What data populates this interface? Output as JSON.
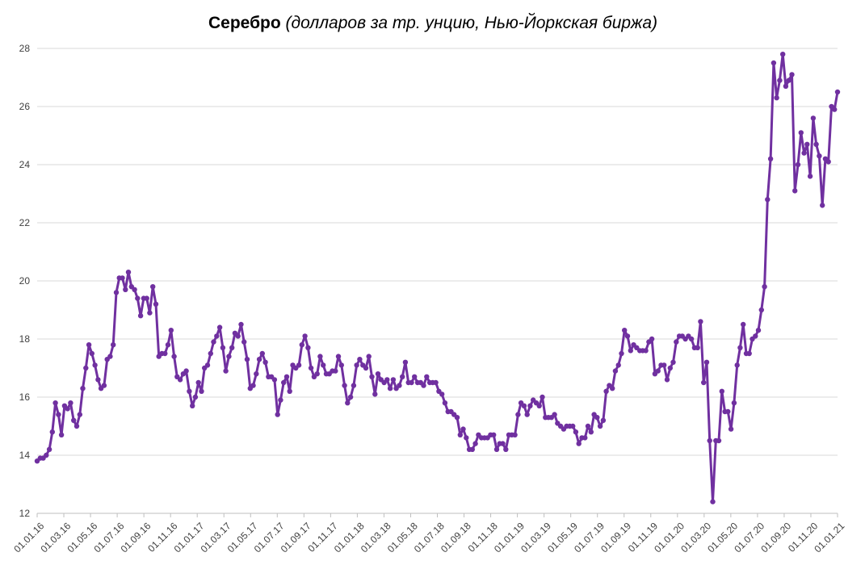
{
  "chart_data": {
    "type": "line",
    "title": "Серебро",
    "subtitle": "(долларов за тр. унцию, Нью-Йоркская биржа)",
    "xlabel": "",
    "ylabel": "",
    "ylim": [
      12,
      28
    ],
    "yticks": [
      12,
      14,
      16,
      18,
      20,
      22,
      24,
      26,
      28
    ],
    "grid": true,
    "legend": "none",
    "colors": {
      "line": "#7030A0",
      "grid": "#d9d9d9",
      "axis": "#bfbfbf",
      "text": "#404040"
    },
    "x_tick_labels": [
      "01.01.16",
      "01.03.16",
      "01.05.16",
      "01.07.16",
      "01.09.16",
      "01.11.16",
      "01.01.17",
      "01.03.17",
      "01.05.17",
      "01.07.17",
      "01.09.17",
      "01.11.17",
      "01.01.18",
      "01.03.18",
      "01.05.18",
      "01.07.18",
      "01.09.18",
      "01.11.18",
      "01.01.19",
      "01.03.19",
      "01.05.19",
      "01.07.19",
      "01.09.19",
      "01.11.19",
      "01.01.20",
      "01.03.20",
      "01.05.20",
      "01.07.20",
      "01.09.20",
      "01.11.20",
      "01.01.21"
    ],
    "series": [
      {
        "values": [
          13.8,
          13.9,
          13.9,
          14.0,
          14.2,
          14.8,
          15.8,
          15.4,
          14.7,
          15.7,
          15.6,
          15.8,
          15.2,
          15.0,
          15.4,
          16.3,
          17.0,
          17.8,
          17.5,
          17.1,
          16.6,
          16.3,
          16.4,
          17.3,
          17.4,
          17.8,
          19.6,
          20.1,
          20.1,
          19.7,
          20.3,
          19.8,
          19.7,
          19.4,
          18.8,
          19.4,
          19.4,
          18.9,
          19.8,
          19.2,
          17.4,
          17.5,
          17.5,
          17.8,
          18.3,
          17.4,
          16.7,
          16.6,
          16.8,
          16.9,
          16.2,
          15.7,
          16.0,
          16.5,
          16.2,
          17.0,
          17.1,
          17.5,
          17.9,
          18.1,
          18.4,
          17.7,
          16.9,
          17.4,
          17.7,
          18.2,
          18.1,
          18.5,
          17.9,
          17.3,
          16.3,
          16.4,
          16.8,
          17.3,
          17.5,
          17.2,
          16.7,
          16.7,
          16.6,
          15.4,
          15.9,
          16.5,
          16.7,
          16.2,
          17.1,
          17.0,
          17.1,
          17.8,
          18.1,
          17.7,
          17.0,
          16.7,
          16.8,
          17.4,
          17.1,
          16.8,
          16.8,
          16.9,
          16.9,
          17.4,
          17.1,
          16.4,
          15.8,
          16.0,
          16.4,
          17.1,
          17.3,
          17.1,
          17.0,
          17.4,
          16.7,
          16.1,
          16.8,
          16.6,
          16.5,
          16.6,
          16.3,
          16.6,
          16.3,
          16.4,
          16.7,
          17.2,
          16.5,
          16.5,
          16.7,
          16.5,
          16.5,
          16.4,
          16.7,
          16.5,
          16.5,
          16.5,
          16.2,
          16.1,
          15.8,
          15.5,
          15.5,
          15.4,
          15.3,
          14.7,
          14.9,
          14.6,
          14.2,
          14.2,
          14.4,
          14.7,
          14.6,
          14.6,
          14.6,
          14.7,
          14.7,
          14.2,
          14.4,
          14.4,
          14.2,
          14.7,
          14.7,
          14.7,
          15.4,
          15.8,
          15.7,
          15.4,
          15.7,
          15.9,
          15.8,
          15.7,
          16.0,
          15.3,
          15.3,
          15.3,
          15.4,
          15.1,
          15.0,
          14.9,
          15.0,
          15.0,
          15.0,
          14.8,
          14.4,
          14.6,
          14.6,
          15.0,
          14.8,
          15.4,
          15.3,
          15.0,
          15.2,
          16.2,
          16.4,
          16.3,
          16.9,
          17.1,
          17.5,
          18.3,
          18.1,
          17.6,
          17.8,
          17.7,
          17.6,
          17.6,
          17.6,
          17.9,
          18.0,
          16.8,
          16.9,
          17.1,
          17.1,
          16.6,
          17.0,
          17.2,
          17.9,
          18.1,
          18.1,
          18.0,
          18.1,
          18.0,
          17.7,
          17.7,
          18.6,
          16.5,
          17.2,
          14.5,
          12.4,
          14.5,
          14.5,
          16.2,
          15.5,
          15.5,
          14.9,
          15.8,
          17.1,
          17.7,
          18.5,
          17.5,
          17.5,
          18.0,
          18.1,
          18.3,
          19.0,
          19.8,
          22.8,
          24.2,
          27.5,
          26.3,
          26.9,
          27.8,
          26.7,
          26.9,
          27.1,
          23.1,
          24.0,
          25.1,
          24.4,
          24.7,
          23.6,
          25.6,
          24.7,
          24.3,
          22.6,
          24.2,
          24.1,
          26.0,
          25.9,
          26.5
        ]
      }
    ]
  }
}
